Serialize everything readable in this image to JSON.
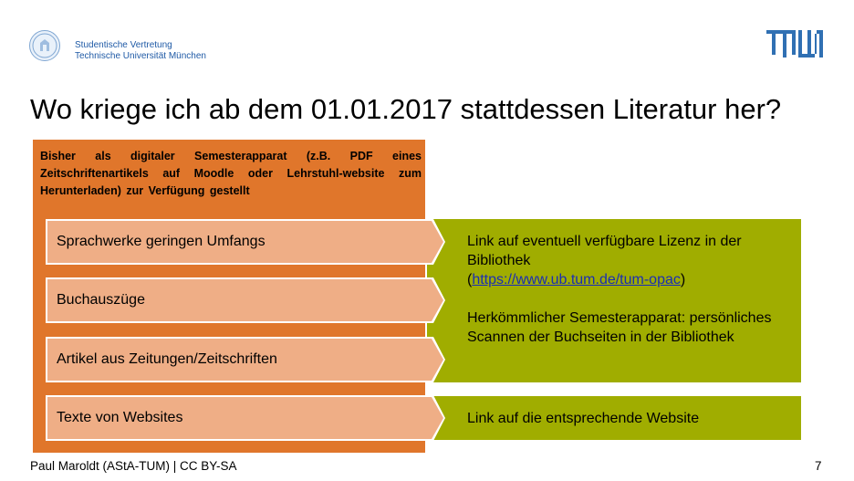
{
  "header": {
    "org_line1": "Studentische Vertretung",
    "org_line2": "Technische Universität München",
    "logo_name": "tum-logo"
  },
  "slide": {
    "title": "Wo kriege ich ab dem 01.01.2017 stattdessen Literatur her?",
    "panel_text": "Bisher als digitaler Semesterapparat (z.B. PDF eines Zeitschriftenartikels auf Moodle oder Lehrstuhl-website zum Herunterladen) zur Verfügung gestellt",
    "items": [
      "Sprachwerke geringen Umfangs",
      "Buchauszüge",
      "Artikel aus Zeitungen/Zeitschriften",
      "Texte von Websites"
    ],
    "green1": {
      "line1": "Link auf eventuell verfügbare Lizenz in der Bibliothek",
      "link_open": "(",
      "link_text": "https://www.ub.tum.de/tum-opac",
      "link_close": ")",
      "para2": "Herkömmlicher Semesterapparat: persönliches Scannen der Buchseiten in der Bibliothek"
    },
    "green2": "Link auf die entsprechende Website"
  },
  "footer": {
    "text": "Paul Maroldt (AStA-TUM) | CC BY-SA",
    "page": "7"
  },
  "colors": {
    "orange": "#e0762b",
    "salmon": "#efae86",
    "olive": "#a0ad00",
    "tum_blue": "#3070b3"
  }
}
